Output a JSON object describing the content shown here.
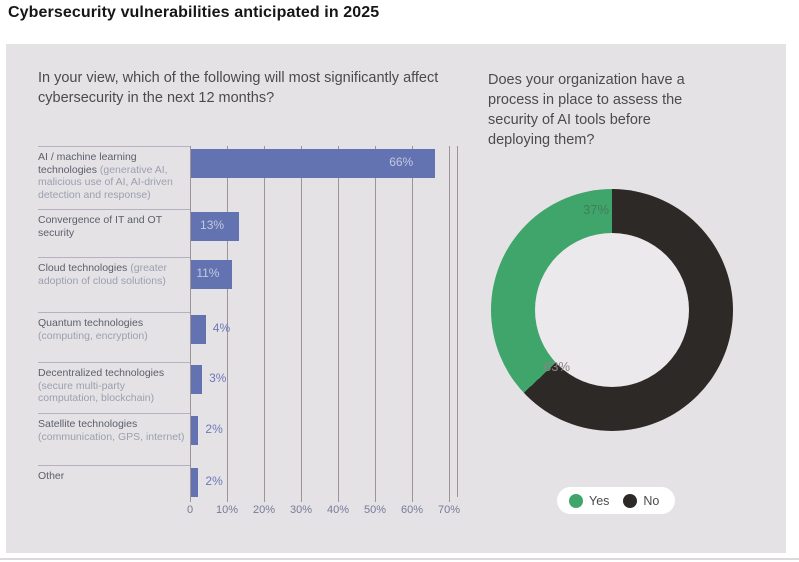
{
  "page_title": "Cybersecurity vulnerabilities anticipated in 2025",
  "colors": {
    "panel_bg": "#e5e2e6",
    "bar": "#6373b1",
    "bar_label_inside": "#c3c9e0",
    "bar_label_outside": "#6b79b7",
    "gridline": "#9e9497",
    "row_separator": "#b4b1c0",
    "donut_yes_green": "#3fa56b",
    "donut_no_black": "#2d2926",
    "legend_bg": "#ffffff"
  },
  "bar_chart": {
    "question": "In your view, which of the following will most significantly affect cybersecurity in the next 12 months?",
    "axis_ticks": [
      "0",
      "10%",
      "20%",
      "30%",
      "40%",
      "50%",
      "60%",
      "70%"
    ],
    "items": [
      {
        "label": "AI / machine learning technologies",
        "sublabel": "(generative AI, malicious use of AI, AI-driven detection and response)",
        "value": 66,
        "value_label": "66%"
      },
      {
        "label": "Convergence of IT and OT security",
        "sublabel": "",
        "value": 13,
        "value_label": "13%"
      },
      {
        "label": "Cloud technologies",
        "sublabel": "(greater adoption of cloud solutions)",
        "value": 11,
        "value_label": "11%"
      },
      {
        "label": "Quantum technologies",
        "sublabel": "(computing, encryption)",
        "value": 4,
        "value_label": "4%"
      },
      {
        "label": "Decentralized technologies",
        "sublabel": "(secure multi-party computation, blockchain)",
        "value": 3,
        "value_label": "3%"
      },
      {
        "label": "Satellite technologies",
        "sublabel": "(communication, GPS, internet)",
        "value": 2,
        "value_label": "2%"
      },
      {
        "label": "Other",
        "sublabel": "",
        "value": 2,
        "value_label": "2%"
      }
    ]
  },
  "donut_chart": {
    "question": "Does your organization have a process in place to assess the security of AI tools before deploying them?",
    "slices": [
      {
        "label": "Yes",
        "value": 37,
        "value_label": "37%",
        "color": "#3fa56b"
      },
      {
        "label": "No",
        "value": 63,
        "value_label": "63%",
        "color": "#2d2926"
      }
    ],
    "legend": [
      {
        "label": "Yes",
        "color": "#3fa56b"
      },
      {
        "label": "No",
        "color": "#2d2926"
      }
    ]
  },
  "chart_data": [
    {
      "type": "bar",
      "orientation": "horizontal",
      "title": "In your view, which of the following will most significantly affect cybersecurity in the next 12 months?",
      "categories": [
        "AI / machine learning technologies (generative AI, malicious use of AI, AI-driven detection and response)",
        "Convergence of IT and OT security",
        "Cloud technologies (greater adoption of cloud solutions)",
        "Quantum technologies (computing, encryption)",
        "Decentralized technologies (secure multi-party computation, blockchain)",
        "Satellite technologies (communication, GPS, internet)",
        "Other"
      ],
      "values": [
        66,
        13,
        11,
        4,
        3,
        2,
        2
      ],
      "value_labels": [
        "66%",
        "13%",
        "11%",
        "4%",
        "3%",
        "2%",
        "2%"
      ],
      "xlabel": "",
      "ylabel": "",
      "xlim": [
        0,
        70
      ],
      "x_tick_labels": [
        "0",
        "10%",
        "20%",
        "30%",
        "40%",
        "50%",
        "60%",
        "70%"
      ],
      "grid": true,
      "bar_color": "#6373b1"
    },
    {
      "type": "pie",
      "subtype": "donut",
      "title": "Does your organization have a process in place to assess the security of AI tools before deploying them?",
      "categories": [
        "Yes",
        "No"
      ],
      "values": [
        37,
        63
      ],
      "value_labels": [
        "37%",
        "63%"
      ],
      "colors": [
        "#3fa56b",
        "#2d2926"
      ],
      "legend_position": "bottom"
    }
  ]
}
